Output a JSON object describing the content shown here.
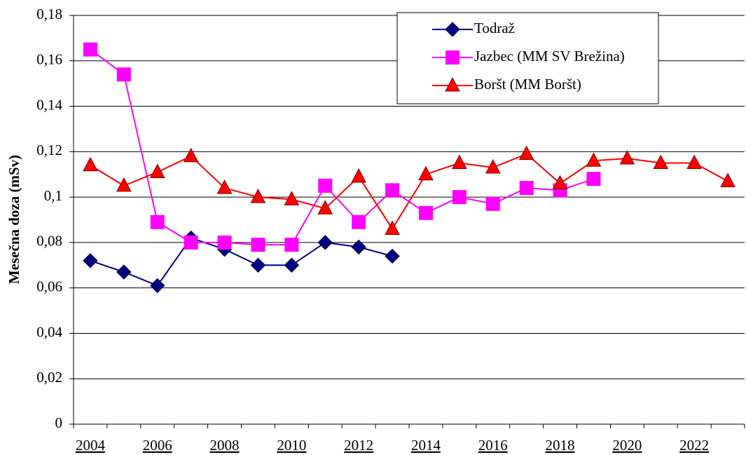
{
  "chart_data": {
    "type": "line",
    "ylabel": "Mesečna doza (mSv)",
    "categories": [
      "2004",
      null,
      "2006",
      null,
      "2008",
      null,
      "2010",
      null,
      "2012",
      null,
      "2014",
      null,
      "2016",
      null,
      "2018",
      null,
      "2020",
      null,
      "2022",
      null
    ],
    "ylim": [
      0,
      0.18
    ],
    "yticks": [
      0,
      {
        "value": 0.02,
        "label": "0,02"
      },
      {
        "value": 0.04,
        "label": "0,04"
      },
      {
        "value": 0.06,
        "label": "0,06"
      },
      {
        "value": 0.08,
        "label": "0,08"
      },
      {
        "value": 0.1,
        "label": "0,1"
      },
      {
        "value": 0.12,
        "label": "0,12"
      },
      {
        "value": 0.14,
        "label": "0,14"
      },
      {
        "value": 0.16,
        "label": "0,16"
      },
      {
        "value": 0.18,
        "label": "0,18"
      }
    ],
    "grid": true,
    "legend": "upper right",
    "series": [
      {
        "name": "Todraž",
        "color": "#000080",
        "marker": "diamond",
        "values": [
          0.072,
          0.067,
          0.061,
          0.082,
          0.077,
          0.07,
          0.07,
          0.08,
          0.078,
          0.074,
          null,
          null,
          null,
          null,
          null,
          null,
          null,
          null,
          null,
          null
        ]
      },
      {
        "name": "Jazbec (MM SV Brežina)",
        "color": "#ff00ff",
        "marker": "square",
        "values": [
          0.165,
          0.154,
          0.089,
          0.08,
          0.08,
          0.079,
          0.079,
          0.105,
          0.089,
          0.103,
          0.093,
          0.1,
          0.097,
          0.104,
          0.103,
          0.108,
          null,
          null,
          null,
          null
        ]
      },
      {
        "name": "Boršt (MM Boršt)",
        "color": "#ff0000",
        "marker": "triangle",
        "values": [
          0.114,
          0.105,
          0.111,
          0.118,
          0.104,
          0.1,
          0.099,
          0.095,
          0.109,
          0.086,
          0.11,
          0.115,
          0.113,
          0.119,
          0.106,
          0.116,
          0.117,
          0.115,
          0.115,
          0.107
        ]
      }
    ]
  }
}
